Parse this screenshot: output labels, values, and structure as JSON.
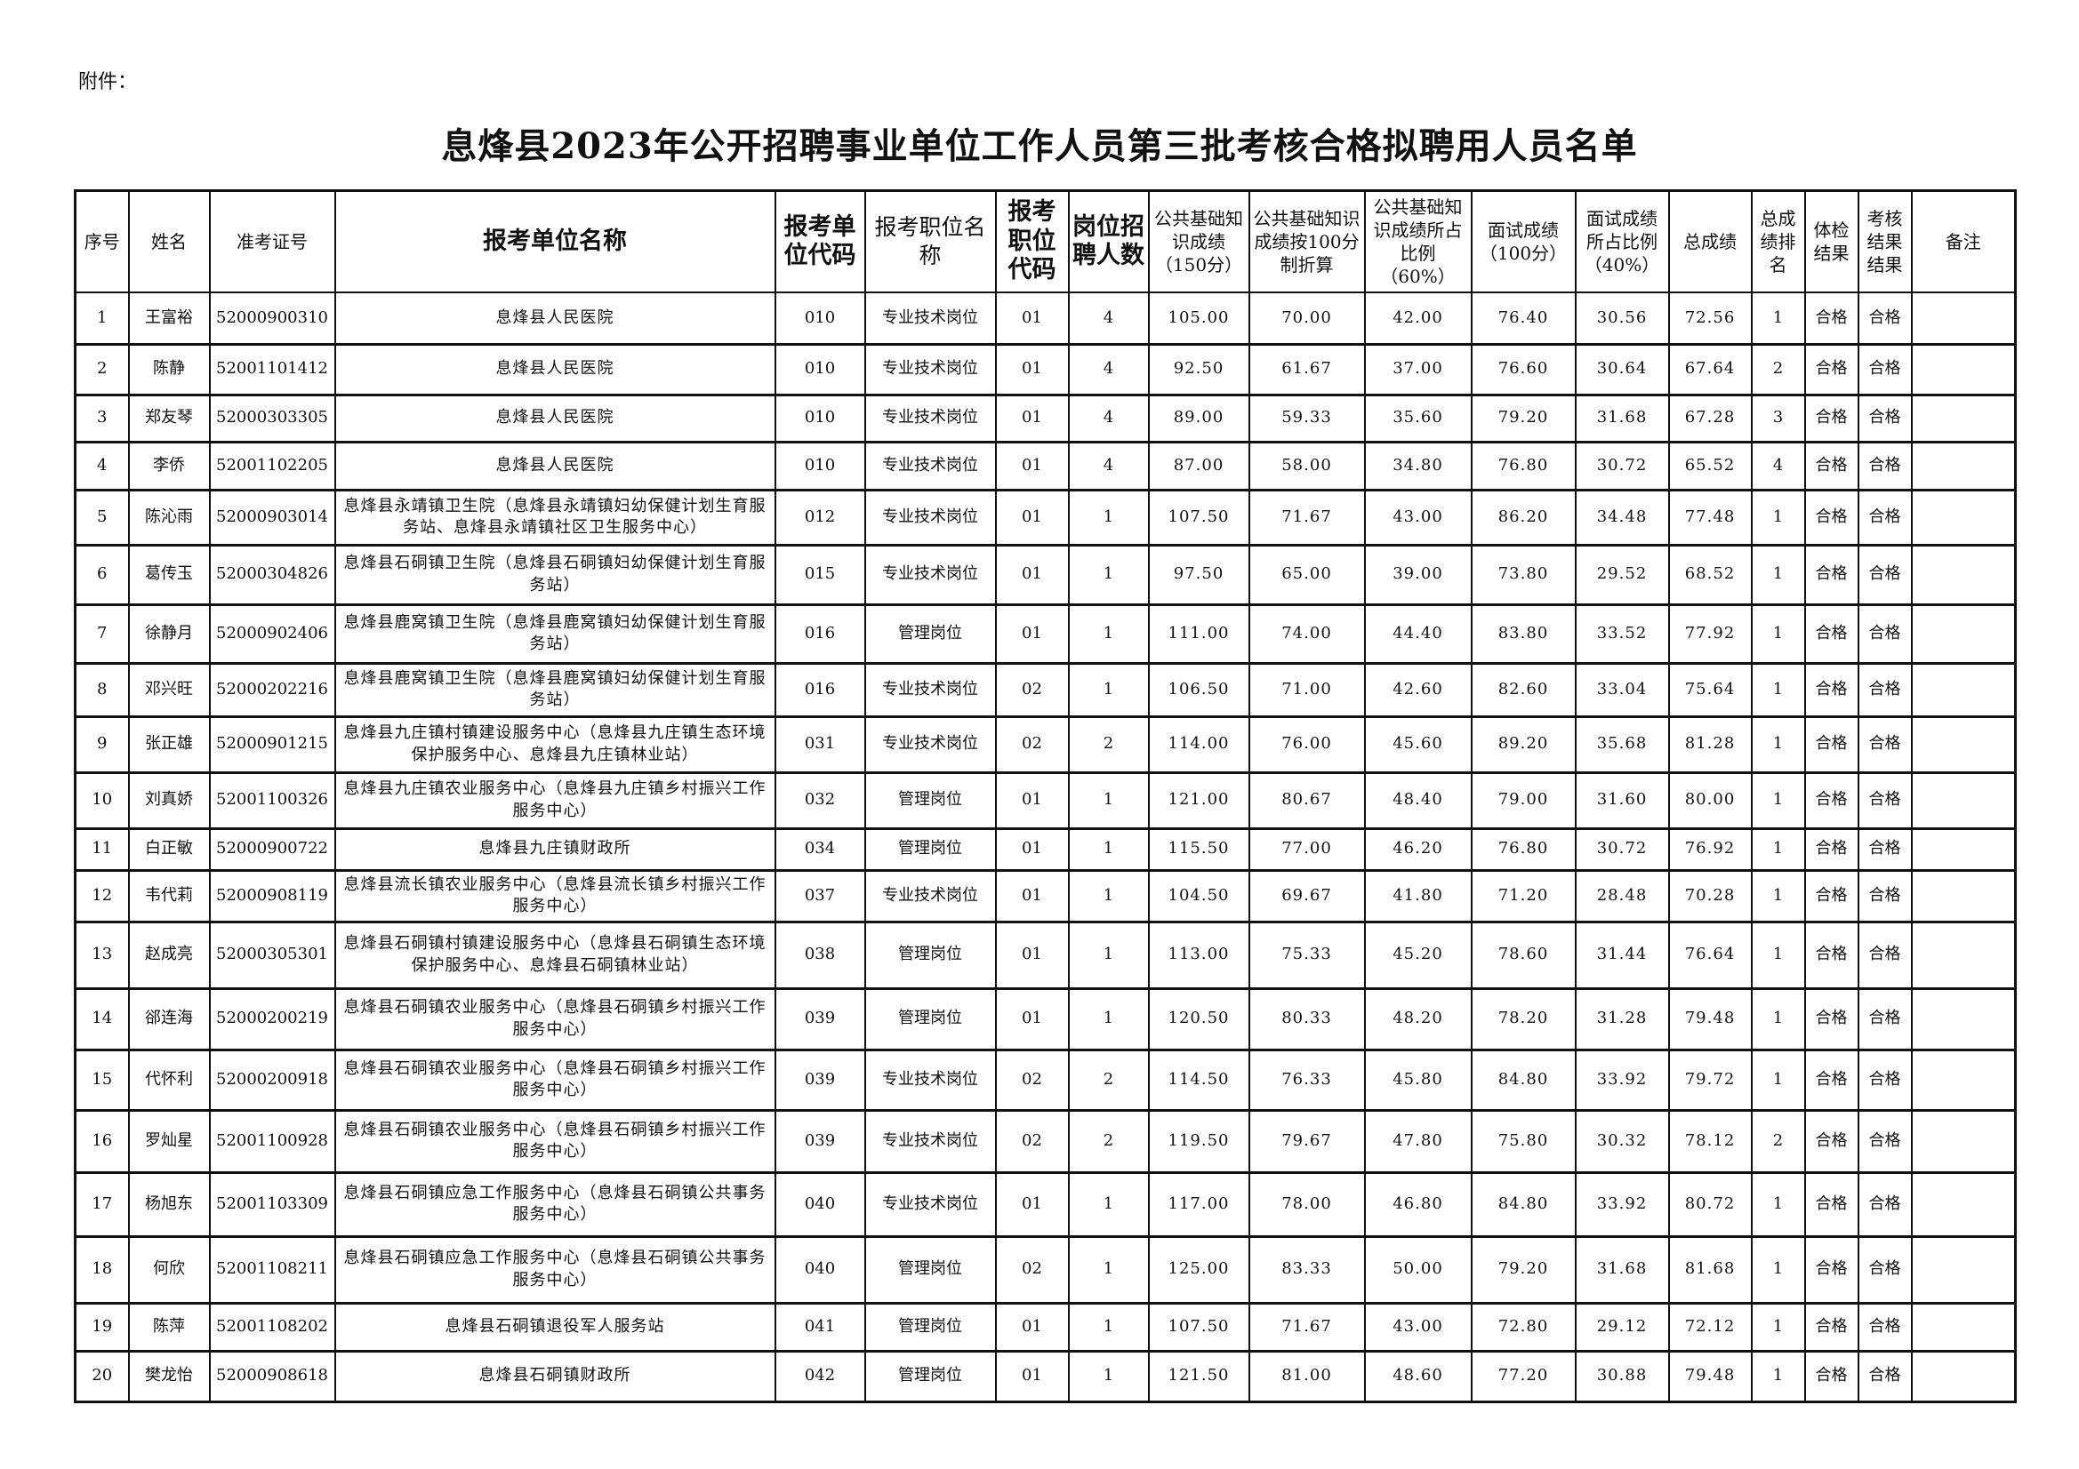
{
  "attachment_label": "附件：",
  "title": "息烽县2023年公开招聘事业单位工作人员第三批考核合格拟聘用人员名单",
  "headers": [
    "序号",
    "姓名",
    "准考证号",
    "报考单位名称",
    "报考单位代码",
    "报考职位名称",
    "报考职位代码",
    "岗位招聘人数",
    "公共基础知识成绩（150分）",
    "公共基础知识成绩按100分制折算",
    "公共基础知识成绩所占比例（60%）",
    "面试成绩（100分）",
    "面试成绩所占比例（40%）",
    "总成绩",
    "总成绩排名",
    "体检结果",
    "考核结果结果",
    "备注"
  ],
  "rows": [
    [
      "1",
      "王富裕",
      "52000900310",
      "息烽县人民医院",
      "010",
      "专业技术岗位",
      "01",
      "4",
      "105.00",
      "70.00",
      "42.00",
      "76.40",
      "30.56",
      "72.56",
      "1",
      "合格",
      "合格",
      ""
    ],
    [
      "2",
      "陈静",
      "52001101412",
      "息烽县人民医院",
      "010",
      "专业技术岗位",
      "01",
      "4",
      "92.50",
      "61.67",
      "37.00",
      "76.60",
      "30.64",
      "67.64",
      "2",
      "合格",
      "合格",
      ""
    ],
    [
      "3",
      "郑友琴",
      "52000303305",
      "息烽县人民医院",
      "010",
      "专业技术岗位",
      "01",
      "4",
      "89.00",
      "59.33",
      "35.60",
      "79.20",
      "31.68",
      "67.28",
      "3",
      "合格",
      "合格",
      ""
    ],
    [
      "4",
      "李侨",
      "52001102205",
      "息烽县人民医院",
      "010",
      "专业技术岗位",
      "01",
      "4",
      "87.00",
      "58.00",
      "34.80",
      "76.80",
      "30.72",
      "65.52",
      "4",
      "合格",
      "合格",
      ""
    ],
    [
      "5",
      "陈沁雨",
      "52000903014",
      "息烽县永靖镇卫生院（息烽县永靖镇妇幼保健计划生育服务站、息烽县永靖镇社区卫生服务中心）",
      "012",
      "专业技术岗位",
      "01",
      "1",
      "107.50",
      "71.67",
      "43.00",
      "86.20",
      "34.48",
      "77.48",
      "1",
      "合格",
      "合格",
      ""
    ],
    [
      "6",
      "葛传玉",
      "52000304826",
      "息烽县石硐镇卫生院（息烽县石硐镇妇幼保健计划生育服务站）",
      "015",
      "专业技术岗位",
      "01",
      "1",
      "97.50",
      "65.00",
      "39.00",
      "73.80",
      "29.52",
      "68.52",
      "1",
      "合格",
      "合格",
      ""
    ],
    [
      "7",
      "徐静月",
      "52000902406",
      "息烽县鹿窝镇卫生院（息烽县鹿窝镇妇幼保健计划生育服务站）",
      "016",
      "管理岗位",
      "01",
      "1",
      "111.00",
      "74.00",
      "44.40",
      "83.80",
      "33.52",
      "77.92",
      "1",
      "合格",
      "合格",
      ""
    ],
    [
      "8",
      "邓兴旺",
      "52000202216",
      "息烽县鹿窝镇卫生院（息烽县鹿窝镇妇幼保健计划生育服务站）",
      "016",
      "专业技术岗位",
      "02",
      "1",
      "106.50",
      "71.00",
      "42.60",
      "82.60",
      "33.04",
      "75.64",
      "1",
      "合格",
      "合格",
      ""
    ],
    [
      "9",
      "张正雄",
      "52000901215",
      "息烽县九庄镇村镇建设服务中心（息烽县九庄镇生态环境保护服务中心、息烽县九庄镇林业站）",
      "031",
      "专业技术岗位",
      "02",
      "2",
      "114.00",
      "76.00",
      "45.60",
      "89.20",
      "35.68",
      "81.28",
      "1",
      "合格",
      "合格",
      ""
    ],
    [
      "10",
      "刘真娇",
      "52001100326",
      "息烽县九庄镇农业服务中心（息烽县九庄镇乡村振兴工作服务中心）",
      "032",
      "管理岗位",
      "01",
      "1",
      "121.00",
      "80.67",
      "48.40",
      "79.00",
      "31.60",
      "80.00",
      "1",
      "合格",
      "合格",
      ""
    ],
    [
      "11",
      "白正敏",
      "52000900722",
      "息烽县九庄镇财政所",
      "034",
      "管理岗位",
      "01",
      "1",
      "115.50",
      "77.00",
      "46.20",
      "76.80",
      "30.72",
      "76.92",
      "1",
      "合格",
      "合格",
      ""
    ],
    [
      "12",
      "韦代莉",
      "52000908119",
      "息烽县流长镇农业服务中心（息烽县流长镇乡村振兴工作服务中心）",
      "037",
      "专业技术岗位",
      "01",
      "1",
      "104.50",
      "69.67",
      "41.80",
      "71.20",
      "28.48",
      "70.28",
      "1",
      "合格",
      "合格",
      ""
    ],
    [
      "13",
      "赵成亮",
      "52000305301",
      "息烽县石硐镇村镇建设服务中心（息烽县石硐镇生态环境保护服务中心、息烽县石硐镇林业站）",
      "038",
      "管理岗位",
      "01",
      "1",
      "113.00",
      "75.33",
      "45.20",
      "78.60",
      "31.44",
      "76.64",
      "1",
      "合格",
      "合格",
      ""
    ],
    [
      "14",
      "郤连海",
      "52000200219",
      "息烽县石硐镇农业服务中心（息烽县石硐镇乡村振兴工作服务中心）",
      "039",
      "管理岗位",
      "01",
      "1",
      "120.50",
      "80.33",
      "48.20",
      "78.20",
      "31.28",
      "79.48",
      "1",
      "合格",
      "合格",
      ""
    ],
    [
      "15",
      "代怀利",
      "52000200918",
      "息烽县石硐镇农业服务中心（息烽县石硐镇乡村振兴工作服务中心）",
      "039",
      "专业技术岗位",
      "02",
      "2",
      "114.50",
      "76.33",
      "45.80",
      "84.80",
      "33.92",
      "79.72",
      "1",
      "合格",
      "合格",
      ""
    ],
    [
      "16",
      "罗灿星",
      "52001100928",
      "息烽县石硐镇农业服务中心（息烽县石硐镇乡村振兴工作服务中心）",
      "039",
      "专业技术岗位",
      "02",
      "2",
      "119.50",
      "79.67",
      "47.80",
      "75.80",
      "30.32",
      "78.12",
      "2",
      "合格",
      "合格",
      ""
    ],
    [
      "17",
      "杨旭东",
      "52001103309",
      "息烽县石硐镇应急工作服务中心（息烽县石硐镇公共事务服务中心）",
      "040",
      "专业技术岗位",
      "01",
      "1",
      "117.00",
      "78.00",
      "46.80",
      "84.80",
      "33.92",
      "80.72",
      "1",
      "合格",
      "合格",
      ""
    ],
    [
      "18",
      "何欣",
      "52001108211",
      "息烽县石硐镇应急工作服务中心（息烽县石硐镇公共事务服务中心）",
      "040",
      "管理岗位",
      "02",
      "1",
      "125.00",
      "83.33",
      "50.00",
      "79.20",
      "31.68",
      "81.68",
      "1",
      "合格",
      "合格",
      ""
    ],
    [
      "19",
      "陈萍",
      "52001108202",
      "息烽县石硐镇退役军人服务站",
      "041",
      "管理岗位",
      "01",
      "1",
      "107.50",
      "71.67",
      "43.00",
      "72.80",
      "29.12",
      "72.12",
      "1",
      "合格",
      "合格",
      ""
    ],
    [
      "20",
      "樊龙怡",
      "52000908618",
      "息烽县石硐镇财政所",
      "042",
      "管理岗位",
      "01",
      "1",
      "121.50",
      "81.00",
      "48.60",
      "77.20",
      "30.88",
      "79.48",
      "1",
      "合格",
      "合格",
      ""
    ]
  ]
}
